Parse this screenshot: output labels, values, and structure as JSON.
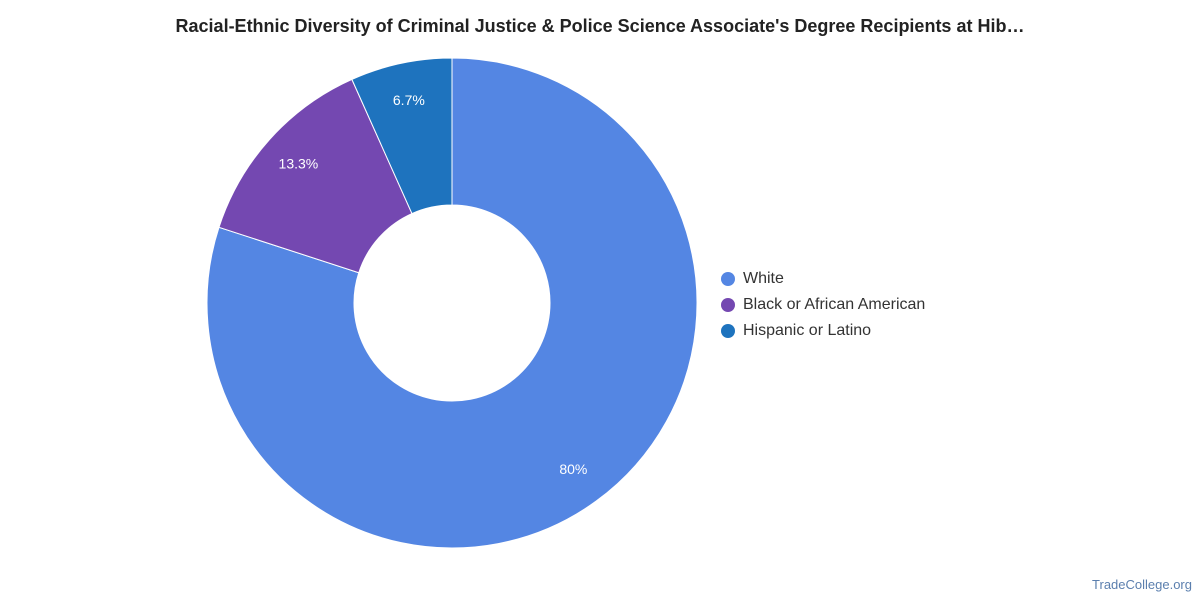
{
  "chart_data": {
    "type": "pie",
    "title": "Racial-Ethnic Diversity of Criminal Justice & Police Science Associate's Degree Recipients at Hib…",
    "donut": true,
    "categories": [
      "White",
      "Black or African American",
      "Hispanic or Latino"
    ],
    "values": [
      80,
      13.3,
      6.7
    ],
    "data_labels": [
      "80%",
      "13.3%",
      "6.7%"
    ],
    "colors": [
      "#5486e3",
      "#7448b1",
      "#1e73be"
    ],
    "legend_position": "right"
  },
  "legend": {
    "items": [
      {
        "label": "White",
        "color": "#5486e3"
      },
      {
        "label": "Black or African American",
        "color": "#7448b1"
      },
      {
        "label": "Hispanic or Latino",
        "color": "#1e73be"
      }
    ]
  },
  "footer": {
    "source": "TradeCollege.org"
  }
}
